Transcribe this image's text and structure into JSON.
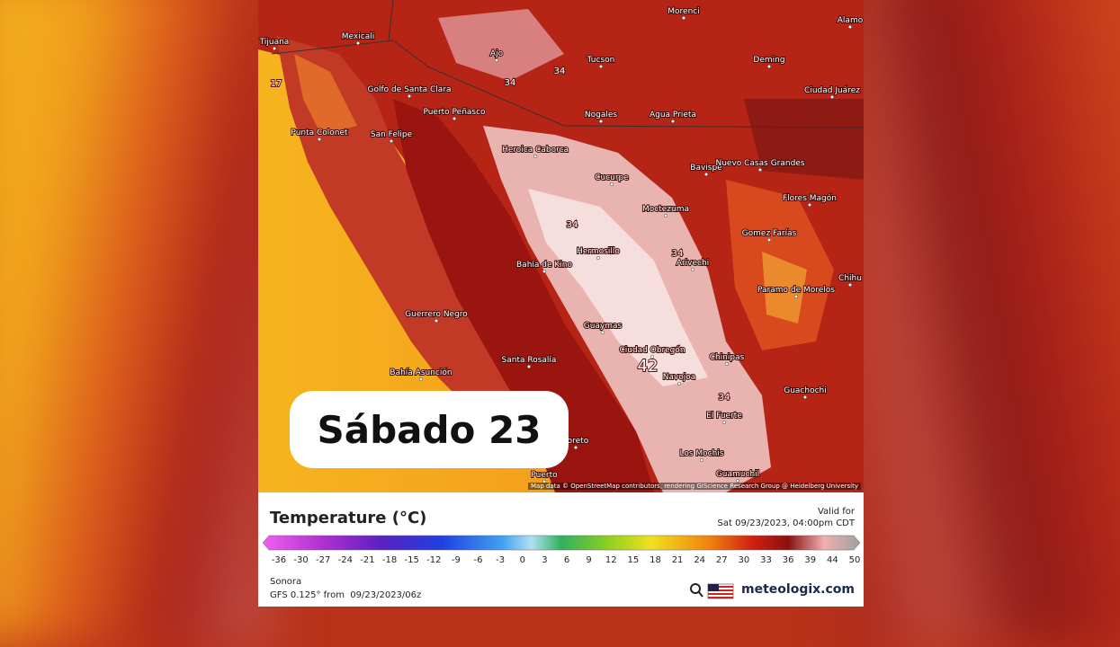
{
  "overlay_label": "Sábado 23",
  "map": {
    "places": [
      "Tijuana",
      "Mexicali",
      "Morenci",
      "Alamo",
      "Ajo",
      "Tucson",
      "Deming",
      "Golfo de Santa Clara",
      "Puerto Peñasco",
      "Nogales",
      "Agua Prieta",
      "Ciudad Juárez",
      "Punta Colonet",
      "San Felipe",
      "Heroica Caborca",
      "Bavispe",
      "Nuevo Casas Grandes",
      "Cucurpe",
      "Flores Magón",
      "Moctezuma",
      "Gomez Farías",
      "Hermosillo",
      "Bahía de Kino",
      "Arivechi",
      "Chihu",
      "Paramo de Morelos",
      "Guerrero Negro",
      "Guaymas",
      "Ciudad Obregón",
      "Chinipas",
      "Navojoa",
      "Bahía Asunción",
      "Santa Rosalía",
      "Guachochi",
      "El Fuerte",
      "Loreto",
      "Los Mochis",
      "Puerto",
      "Guamuchil"
    ],
    "contour_labels": [
      "17",
      "34",
      "34",
      "34",
      "34",
      "34",
      "42"
    ],
    "attribution": "Map data © OpenStreetMap contributors, rendering GIScience Research Group @ Heidelberg University"
  },
  "legend": {
    "title": "Temperature (°C)",
    "valid_label": "Valid for",
    "valid_time": "Sat 09/23/2023, 04:00pm CDT",
    "scale_ticks": [
      -36,
      -30,
      -27,
      -24,
      -21,
      -18,
      -15,
      -12,
      -9,
      -6,
      -3,
      0,
      3,
      6,
      9,
      12,
      15,
      18,
      21,
      24,
      27,
      30,
      33,
      36,
      39,
      44,
      50
    ],
    "region": "Sonora",
    "model": "GFS 0.125° from  09/23/2023/06z",
    "brand": "meteologix.com"
  }
}
